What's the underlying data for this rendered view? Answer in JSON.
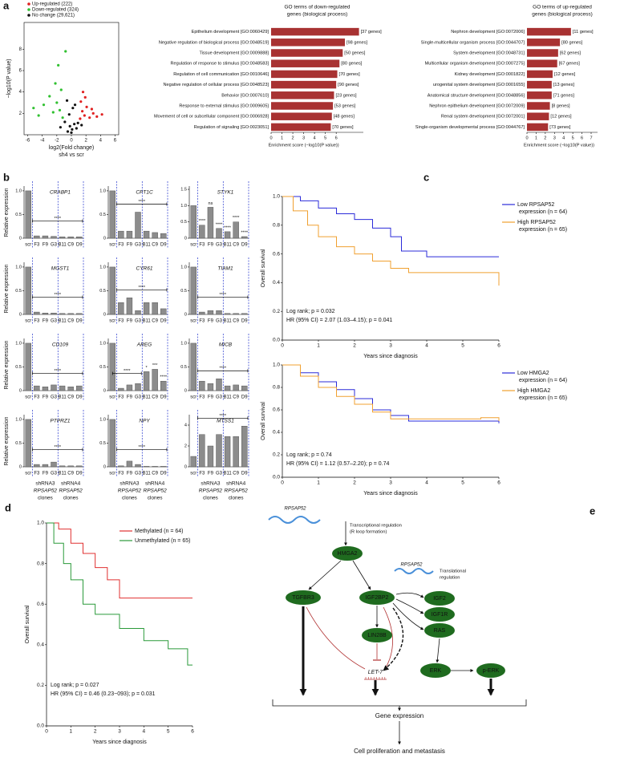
{
  "panel_labels": [
    "a",
    "b",
    "c",
    "d",
    "e"
  ],
  "b_common": {
    "categories": [
      "scr",
      "F3",
      "F9",
      "G3",
      "B11",
      "C9",
      "D9"
    ],
    "ylabel": "Relative expression",
    "group_labels": [
      [
        "shRNA3",
        "RPSAP52",
        "clones"
      ],
      [
        "shRNA4",
        "RPSAP52",
        "clones"
      ]
    ]
  },
  "chart_data": [
    {
      "type": "scatter",
      "xlabel": "log2(Fold change)",
      "subtitle": "sh4 vs scr",
      "ylabel": "−log10(P value)",
      "xlim": [
        -6.5,
        6.5
      ],
      "xticks": [
        -6,
        -4,
        -2,
        0,
        2,
        4,
        6
      ],
      "ylim": [
        0,
        10.5
      ],
      "yticks": [
        2,
        4,
        6,
        8
      ],
      "series": [
        {
          "name": "Up-regulated (222)",
          "color": "#e02020",
          "x": [
            1.2,
            1.5,
            1.8,
            2.1,
            2.5,
            3.0,
            3.5,
            1.3,
            1.9,
            2.8,
            4.2,
            1.6
          ],
          "values": [
            1.5,
            2.2,
            1.8,
            2.6,
            1.6,
            2.0,
            1.7,
            3.1,
            3.5,
            2.4,
            1.9,
            4.0
          ]
        },
        {
          "name": "Down-regulated (324)",
          "color": "#30c030",
          "x": [
            -1.2,
            -1.6,
            -2.0,
            -2.5,
            -3.0,
            -3.8,
            -4.5,
            -1.4,
            -2.2,
            -5.2,
            -1.8,
            -0.8
          ],
          "values": [
            1.6,
            2.3,
            3.0,
            2.1,
            3.6,
            2.8,
            1.8,
            4.2,
            4.8,
            2.5,
            6.5,
            7.8
          ]
        },
        {
          "name": "No change (29,621)",
          "color": "#111111",
          "x": [
            -0.5,
            -0.2,
            0.1,
            0.4,
            0.7,
            -0.9,
            0.9,
            -0.3,
            0.2,
            0.0,
            -1.5,
            1.4,
            -0.6,
            0.5
          ],
          "values": [
            0.3,
            0.8,
            0.5,
            1.0,
            0.6,
            1.2,
            1.1,
            1.9,
            2.5,
            0.2,
            0.7,
            0.9,
            3.2,
            2.8
          ]
        }
      ]
    },
    {
      "type": "barh",
      "title": [
        "GO terms of down-regulated",
        "genes (biological process)"
      ],
      "color": "#a83232",
      "xlabel": "Enrichment score (−log10(P value))",
      "xlim": [
        0,
        8.5
      ],
      "xticks": [
        0,
        1,
        2,
        3,
        4,
        5,
        6
      ],
      "categories": [
        "Epithelium development [GO:0060429]",
        "Negative regulation of biological process [GO:0048519]",
        "Tissue development [GO:0009888]",
        "Regulation of response to stimulus [GO:0048583]",
        "Regulation of cell communication [GO:0010646]",
        "Negative regulation of cellular process [GO:0048523]",
        "Behavior [GO:0007610]",
        "Response to external stimulus [GO:0009605]",
        "Movement of cell or subcellular component [GO:0006928]",
        "Regulation of signaling [GO:0023051]"
      ],
      "values": [
        8.1,
        6.8,
        6.6,
        6.3,
        6.1,
        6.0,
        5.8,
        5.7,
        5.6,
        5.5
      ],
      "gene_labels": [
        "[37 genes]",
        "[98 genes]",
        "[50 genes]",
        "[80 genes]",
        "[70 genes]",
        "[90 genes]",
        "[23 genes]",
        "[53 genes]",
        "[48 genes]",
        "[70 genes]"
      ]
    },
    {
      "type": "barh",
      "title": [
        "GO terms of up-regulated",
        "genes (biological process)"
      ],
      "color": "#a83232",
      "xlabel": "Enrichment score (−log10(P value))",
      "xlim": [
        0,
        7.7
      ],
      "xticks": [
        0,
        1,
        2,
        3,
        4,
        5,
        6,
        7
      ],
      "categories": [
        "Nephron development [GO:0072006]",
        "Single-multicellular organism process [GO:0044707]",
        "System development [GO:0048731]",
        "Multicellular organism development [GO:0007275]",
        "Kidney development [GO:0001822]",
        "urogenital system development [GO:0001655]",
        "Anatomical structure development [GO:0048856]",
        "Nephron epithelium development [GO:0072009]",
        "Renal system development [GO:0072001]",
        "Single-organism developmental process [GO:0044767]"
      ],
      "values": [
        4.8,
        3.6,
        3.4,
        3.3,
        2.8,
        2.7,
        2.7,
        2.5,
        2.4,
        2.3
      ],
      "gene_labels": [
        "[11 genes]",
        "[80 genes]",
        "[62 genes]",
        "[67 genes]",
        "[12 genes]",
        "[13 genes]",
        "[71 genes]",
        "[8 genes]",
        "[12 genes]",
        "[73 genes]"
      ]
    },
    {
      "type": "bar",
      "title": "CRABP1",
      "color": "#8c8c8c",
      "values": [
        1,
        0.05,
        0.05,
        0.04,
        0.03,
        0.03,
        0.03
      ],
      "ylim": [
        0,
        1.1
      ],
      "yticks": [
        0,
        0.5,
        {
          "value": 1,
          "label": "1.0"
        }
      ],
      "bracket": "****"
    },
    {
      "type": "bar",
      "title": "CPT1C",
      "color": "#8c8c8c",
      "values": [
        1,
        0.15,
        0.15,
        0.55,
        0.15,
        0.12,
        0.1
      ],
      "ylim": [
        0,
        1.1
      ],
      "yticks": [
        0,
        0.5,
        {
          "value": 1,
          "label": "1.0"
        }
      ],
      "bracket": "****"
    },
    {
      "type": "bar",
      "title": "STYK1",
      "color": "#8c8c8c",
      "values": [
        1,
        0.4,
        0.95,
        0.3,
        0.2,
        0.5,
        0.05
      ],
      "ylim": [
        0,
        1.6
      ],
      "yticks": [
        0,
        0.5,
        {
          "value": 1,
          "label": "1.0"
        },
        1.5
      ],
      "bar_labels": [
        null,
        "****",
        "ns",
        "****",
        "****",
        "****",
        "****"
      ]
    },
    {
      "type": "bar",
      "title": "MGST1",
      "color": "#8c8c8c",
      "values": [
        1,
        0.05,
        0.03,
        0.03,
        0.02,
        0.02,
        0.02
      ],
      "ylim": [
        0,
        1.1
      ],
      "yticks": [
        0,
        0.5,
        {
          "value": 1,
          "label": "1.0"
        }
      ],
      "bracket": "****"
    },
    {
      "type": "bar",
      "title": "CYR61",
      "color": "#8c8c8c",
      "values": [
        1,
        0.25,
        0.35,
        0.08,
        0.25,
        0.25,
        0.12
      ],
      "ylim": [
        0,
        1.1
      ],
      "yticks": [
        0,
        0.5,
        {
          "value": 1,
          "label": "1.0"
        }
      ],
      "bracket": "****"
    },
    {
      "type": "bar",
      "title": "TIAM1",
      "color": "#8c8c8c",
      "values": [
        1,
        0.05,
        0.08,
        0.08,
        0.02,
        0.02,
        0.02
      ],
      "ylim": [
        0,
        1.1
      ],
      "yticks": [
        0,
        0.5,
        {
          "value": 1,
          "label": "1.0"
        }
      ],
      "bracket": "****"
    },
    {
      "type": "bar",
      "title": "CD109",
      "color": "#8c8c8c",
      "values": [
        1,
        0.1,
        0.08,
        0.12,
        0.1,
        0.08,
        0.1
      ],
      "ylim": [
        0,
        1.1
      ],
      "yticks": [
        0,
        0.5,
        {
          "value": 1,
          "label": "1.0"
        }
      ],
      "bracket": "****"
    },
    {
      "type": "bar",
      "title": "AREG",
      "color": "#8c8c8c",
      "values": [
        1,
        0.05,
        0.12,
        0.15,
        0.4,
        0.45,
        0.2
      ],
      "ylim": [
        0,
        1.1
      ],
      "yticks": [
        0,
        0.5,
        {
          "value": 1,
          "label": "1.0"
        }
      ],
      "bracket": "****",
      "bar_labels": [
        null,
        null,
        null,
        null,
        "*",
        "***",
        "****"
      ]
    },
    {
      "type": "bar",
      "title": "MICB",
      "color": "#8c8c8c",
      "values": [
        1,
        0.2,
        0.15,
        0.25,
        0.1,
        0.12,
        0.1
      ],
      "ylim": [
        0,
        1.1
      ],
      "yticks": [
        0,
        0.5,
        {
          "value": 1,
          "label": "1.0"
        }
      ],
      "bracket": "****"
    },
    {
      "type": "bar",
      "title": "PTPRZ1",
      "color": "#8c8c8c",
      "values": [
        1,
        0.05,
        0.05,
        0.1,
        0.02,
        0.02,
        0.02
      ],
      "ylim": [
        0,
        1.1
      ],
      "yticks": [
        0,
        0.5,
        {
          "value": 1,
          "label": "1.0"
        }
      ],
      "bracket": "****"
    },
    {
      "type": "bar",
      "title": "NPY",
      "color": "#8c8c8c",
      "values": [
        1,
        0.02,
        0.12,
        0.05,
        0.01,
        0.01,
        0.01
      ],
      "ylim": [
        0,
        1.1
      ],
      "yticks": [
        0,
        0.5,
        {
          "value": 1,
          "label": "1.0"
        }
      ],
      "bracket": "****"
    },
    {
      "type": "bar",
      "title": "MTSS1",
      "color": "#8c8c8c",
      "values": [
        1,
        3.1,
        2.0,
        3.1,
        2.9,
        2.9,
        3.9
      ],
      "ylim": [
        0,
        5
      ],
      "yticks": [
        0,
        2,
        4
      ],
      "bracket": "****"
    },
    {
      "type": "survival",
      "xlabel": "Years since diagnosis",
      "ylabel": "Overall survival",
      "xlim": [
        0,
        6
      ],
      "xticks": [
        0,
        1,
        2,
        3,
        4,
        5,
        6
      ],
      "ylim": [
        0,
        1
      ],
      "yticks": [
        {
          "value": 0,
          "label": "0.0"
        },
        0.2,
        0.4,
        0.6,
        0.8,
        {
          "value": 1,
          "label": "1.0"
        }
      ],
      "legend": "right",
      "annotations": [
        "Log rank; p = 0.032",
        "HR (95% CI) = 2.07 (1.03–4.15); p = 0.041"
      ],
      "series": [
        {
          "name": "Low RPSAP52 expression (n = 64)",
          "color": "#2b2bd9",
          "x": [
            0,
            0.5,
            1,
            1.5,
            2,
            2.5,
            3,
            3.3,
            4,
            6
          ],
          "values": [
            1,
            0.97,
            0.92,
            0.88,
            0.84,
            0.78,
            0.72,
            0.62,
            0.58,
            0.58
          ]
        },
        {
          "name": "High RPSAP52 expression (n = 65)",
          "color": "#f0a030",
          "x": [
            0,
            0.3,
            0.7,
            1,
            1.5,
            2,
            2.5,
            3,
            3.5,
            5.5,
            6
          ],
          "values": [
            1,
            0.9,
            0.8,
            0.72,
            0.65,
            0.6,
            0.55,
            0.5,
            0.47,
            0.47,
            0.38
          ]
        }
      ]
    },
    {
      "type": "survival",
      "xlabel": "Years since diagnosis",
      "ylabel": "Overall survival",
      "xlim": [
        0,
        6
      ],
      "xticks": [
        0,
        1,
        2,
        3,
        4,
        5,
        6
      ],
      "ylim": [
        0,
        1
      ],
      "yticks": [
        {
          "value": 0,
          "label": "0.0"
        },
        0.2,
        0.4,
        0.6,
        0.8,
        {
          "value": 1,
          "label": "1.0"
        }
      ],
      "legend": "right",
      "annotations": [
        "Log rank; p = 0.74",
        "HR (95% CI) = 1.12 (0.57–2.20); p = 0.74"
      ],
      "series": [
        {
          "name": "Low HMGA2 expression (n = 64)",
          "color": "#2b2bd9",
          "x": [
            0,
            0.5,
            1,
            1.5,
            2,
            2.5,
            3,
            3.5,
            6
          ],
          "values": [
            1,
            0.93,
            0.85,
            0.78,
            0.7,
            0.6,
            0.55,
            0.5,
            0.48
          ]
        },
        {
          "name": "High HMGA2 expression (n = 65)",
          "color": "#f0a030",
          "x": [
            0,
            0.5,
            1,
            1.5,
            2,
            2.5,
            3,
            4,
            5.5,
            6
          ],
          "values": [
            1,
            0.9,
            0.8,
            0.72,
            0.65,
            0.58,
            0.52,
            0.52,
            0.53,
            0.5
          ]
        }
      ]
    },
    {
      "type": "survival",
      "xlabel": "Years since diagnosis",
      "ylabel": "Overall survival",
      "xlim": [
        0,
        6
      ],
      "xticks": [
        0,
        1,
        2,
        3,
        4,
        5,
        6
      ],
      "ylim": [
        0,
        1
      ],
      "yticks": [
        {
          "value": 0,
          "label": "0.0"
        },
        0.2,
        0.4,
        0.6,
        0.8,
        {
          "value": 1,
          "label": "1.0"
        }
      ],
      "legend": "top-right",
      "annotations": [
        "Log rank; p = 0.027",
        "HR (95% CI) = 0.46 (0.23−093); p = 0.031"
      ],
      "series": [
        {
          "name": "Methylated (n = 64)",
          "color": "#e03030",
          "x": [
            0,
            0.5,
            1,
            1.5,
            2,
            2.5,
            3,
            6
          ],
          "values": [
            1,
            0.97,
            0.9,
            0.85,
            0.78,
            0.72,
            0.63,
            0.63
          ]
        },
        {
          "name": "Unmethylated (n = 65)",
          "color": "#2a9a3a",
          "x": [
            0,
            0.3,
            0.7,
            1,
            1.5,
            2,
            3,
            4,
            5,
            5.8,
            6
          ],
          "values": [
            1,
            0.9,
            0.8,
            0.72,
            0.6,
            0.55,
            0.48,
            0.42,
            0.38,
            0.3,
            0.3
          ]
        }
      ]
    }
  ],
  "diagram": {
    "nodes": [
      "RPSAP52",
      "HMGA2",
      "RPSAP52",
      "TGFBR3",
      "IGF2BP2",
      "IGF2",
      "IGF1R",
      "RAS",
      "LIN28B",
      "LET-7",
      "ERK",
      "p-ERK"
    ],
    "notes": [
      [
        "Transcriptional regulation",
        "(R loop formation)"
      ],
      [
        "Translational",
        "regulation"
      ]
    ],
    "outputs": [
      "Gene expression",
      "Cell proliferation and metastasis"
    ]
  }
}
